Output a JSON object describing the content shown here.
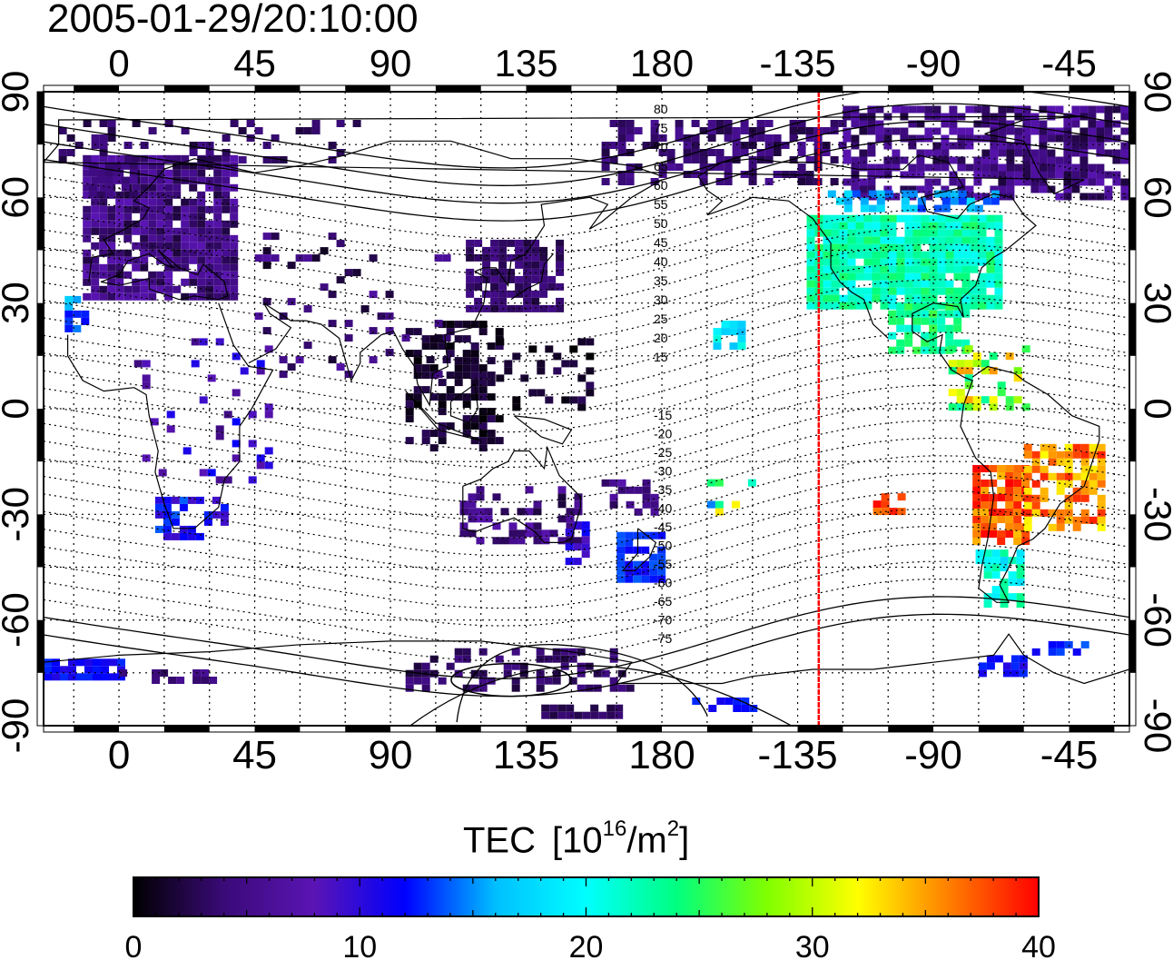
{
  "title": "2005-01-29/20:10:00",
  "colorbar": {
    "label_prefix": "TEC",
    "label_open": "[10",
    "label_exp": "16",
    "label_mid": "/m",
    "label_exp2": "2",
    "label_close": "]",
    "ticks": [
      "0",
      "10",
      "20",
      "30",
      "40"
    ],
    "range": [
      0,
      40
    ],
    "colors": [
      "#000000",
      "#3a0a78",
      "#5a14b4",
      "#0000ff",
      "#00bfff",
      "#00ffff",
      "#00ff80",
      "#80ff00",
      "#ffff00",
      "#ff8000",
      "#ff0000"
    ]
  },
  "map": {
    "lon_ticks_top": [
      "0",
      "45",
      "90",
      "135",
      "180",
      "-135",
      "-90",
      "-45"
    ],
    "lon_ticks_bottom": [
      "0",
      "45",
      "90",
      "135",
      "180",
      "-135",
      "-90",
      "-45"
    ],
    "lat_ticks_left": [
      "90",
      "60",
      "30",
      "0",
      "-30",
      "-60",
      "-90"
    ],
    "lat_ticks_right": [
      "90",
      "60",
      "30",
      "0",
      "-30",
      "-60",
      "-90"
    ],
    "lon_tick_values": [
      0,
      45,
      90,
      135,
      180,
      225,
      270,
      315
    ],
    "lat_tick_values": [
      90,
      60,
      30,
      0,
      -30,
      -60,
      -90
    ],
    "lon_range": [
      -25,
      335
    ],
    "lat_range": [
      -90,
      90
    ],
    "marker_line_lon": -128,
    "marker_line_color": "#ff0000",
    "contour_labels": [
      "80",
      "75",
      "70",
      "65",
      "60",
      "55",
      "50",
      "45",
      "40",
      "35",
      "30",
      "25",
      "20",
      "15",
      "-15",
      "-20",
      "-25",
      "-30",
      "-35",
      "-40",
      "-45",
      "-50",
      "-55",
      "-60",
      "-65",
      "-70",
      "-75"
    ]
  }
}
